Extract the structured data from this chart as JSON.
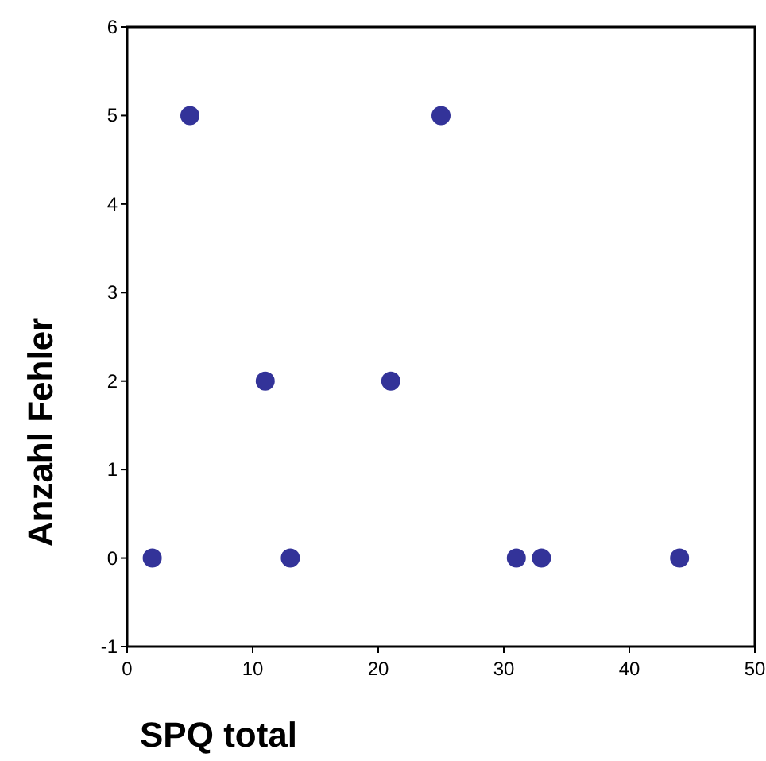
{
  "chart_data": {
    "type": "scatter",
    "xlabel": "SPQ total",
    "ylabel": "Anzahl Fehler",
    "x": [
      2,
      5,
      11,
      13,
      21,
      25,
      31,
      33,
      44
    ],
    "values": [
      0,
      5,
      2,
      0,
      2,
      5,
      0,
      0,
      0
    ],
    "color": "#333399",
    "marker": "circle",
    "xlim": [
      0,
      50
    ],
    "xticks": [
      0,
      10,
      20,
      30,
      40,
      50
    ],
    "ylim": [
      -1,
      6
    ],
    "yticks": [
      -1,
      0,
      1,
      2,
      3,
      4,
      5,
      6
    ],
    "grid": false
  }
}
